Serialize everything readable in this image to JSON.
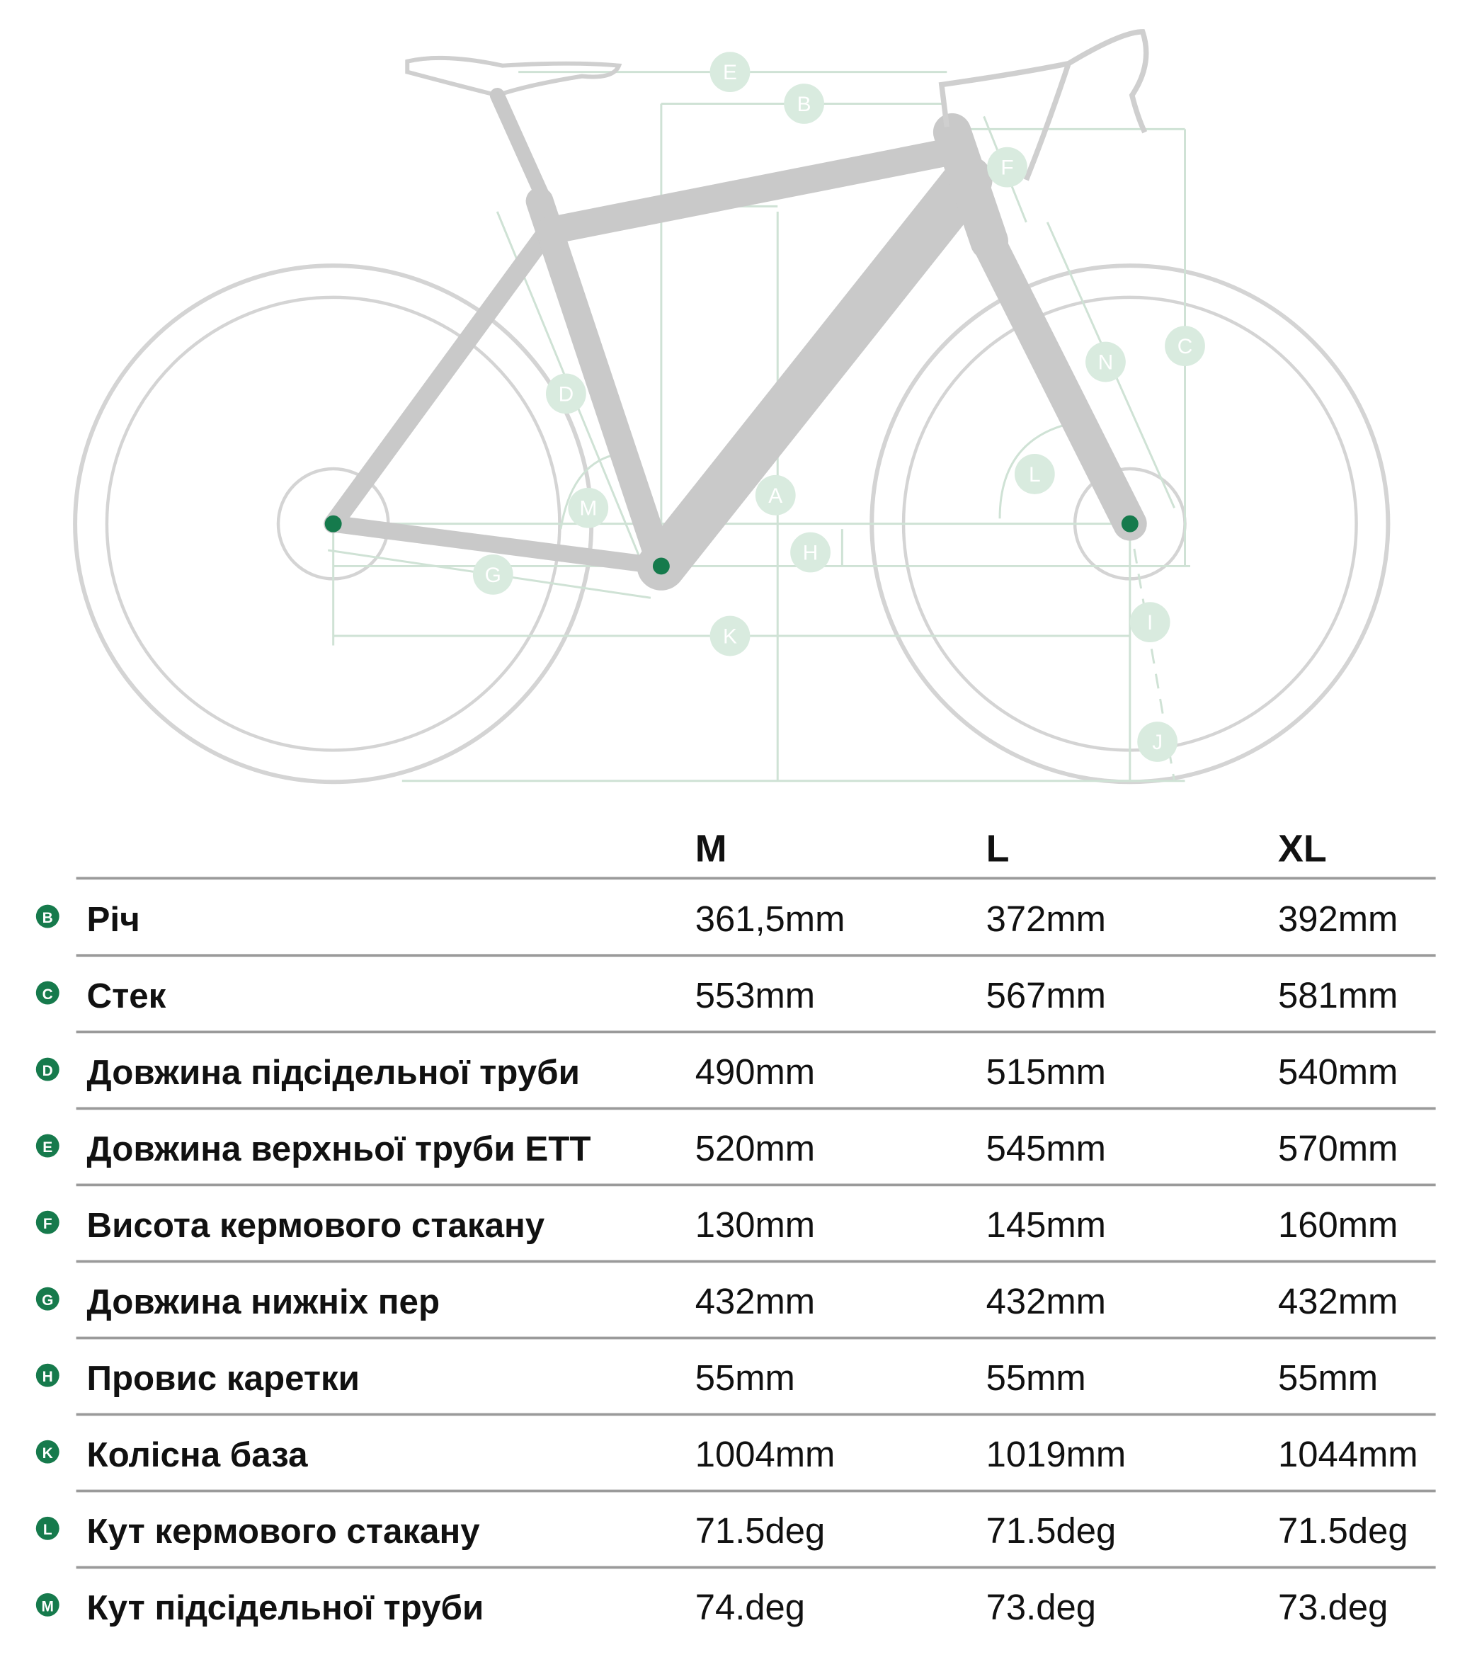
{
  "diagram": {
    "labels": [
      "E",
      "B",
      "F",
      "C",
      "N",
      "D",
      "L",
      "M",
      "A",
      "H",
      "G",
      "K",
      "I",
      "J"
    ]
  },
  "table": {
    "columns": [
      "M",
      "L",
      "XL"
    ],
    "rows": [
      {
        "badge": "B",
        "label": "Річ",
        "values": [
          "361,5mm",
          "372mm",
          "392mm"
        ]
      },
      {
        "badge": "C",
        "label": "Стек",
        "values": [
          "553mm",
          "567mm",
          "581mm"
        ]
      },
      {
        "badge": "D",
        "label": "Довжина підсідельної труби",
        "values": [
          "490mm",
          "515mm",
          "540mm"
        ]
      },
      {
        "badge": "E",
        "label": "Довжина верхньої труби ETT",
        "values": [
          "520mm",
          "545mm",
          "570mm"
        ]
      },
      {
        "badge": "F",
        "label": "Висота кермового стакану",
        "values": [
          "130mm",
          "145mm",
          "160mm"
        ]
      },
      {
        "badge": "G",
        "label": "Довжина нижніх пер",
        "values": [
          "432mm",
          "432mm",
          "432mm"
        ]
      },
      {
        "badge": "H",
        "label": "Провис каретки",
        "values": [
          "55mm",
          "55mm",
          "55mm"
        ]
      },
      {
        "badge": "K",
        "label": "Колісна база",
        "values": [
          "1004mm",
          "1019mm",
          "1044mm"
        ]
      },
      {
        "badge": "L",
        "label": "Кут кермового стакану",
        "values": [
          "71.5deg",
          "71.5deg",
          "71.5deg"
        ]
      },
      {
        "badge": "M",
        "label": "Кут підсідельної труби",
        "values": [
          "74.deg",
          "73.deg",
          "73.deg"
        ]
      }
    ]
  }
}
